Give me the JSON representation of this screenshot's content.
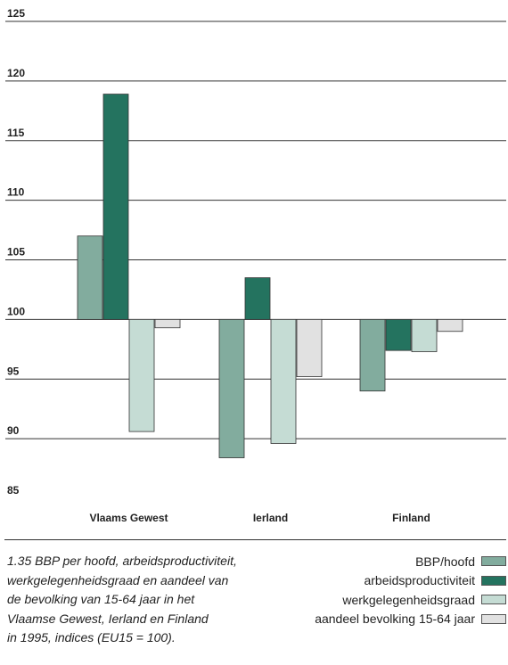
{
  "chart_data": {
    "type": "bar",
    "title": "",
    "xlabel": "",
    "ylabel": "",
    "ylim": [
      85,
      125
    ],
    "baseline": 100,
    "yticks": [
      85,
      90,
      95,
      100,
      105,
      110,
      115,
      120,
      125
    ],
    "grid": true,
    "categories": [
      "Vlaams Gewest",
      "Ierland",
      "Finland"
    ],
    "series": [
      {
        "name": "BBP/hoofd",
        "color": "#82ac9e",
        "values": [
          107.0,
          88.4,
          94.0
        ]
      },
      {
        "name": "arbeidsproductiviteit",
        "color": "#24735f",
        "values": [
          118.9,
          103.5,
          97.4
        ]
      },
      {
        "name": "werkgelegenheidsgraad",
        "color": "#c5dcd4",
        "values": [
          90.6,
          89.6,
          97.3
        ]
      },
      {
        "name": "aandeel bevolking 15-64 jaar",
        "color": "#e1e1e1",
        "values": [
          99.3,
          95.2,
          99.0
        ]
      }
    ],
    "legend_position": "bottom-right"
  },
  "caption": {
    "lines": [
      "1.35  BBP per hoofd, arbeidsproductiviteit,",
      "werkgelegenheidsgraad en aandeel van",
      "de bevolking van 15-64 jaar in het",
      "Vlaamse Gewest, Ierland en Finland",
      "in 1995, indices (EU15 = 100)."
    ]
  }
}
